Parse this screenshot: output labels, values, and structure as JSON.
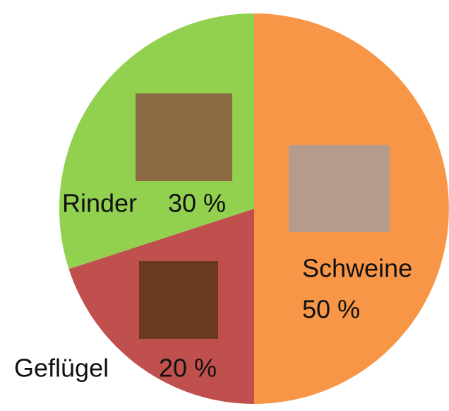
{
  "chart_data": {
    "type": "pie",
    "categories": [
      "Schweine",
      "Geflügel",
      "Rinder"
    ],
    "values": [
      50,
      20,
      30
    ],
    "value_labels": [
      "50 %",
      "20 %",
      "30 %"
    ],
    "colors": [
      "#f79646",
      "#c0504d",
      "#92d050"
    ]
  }
}
